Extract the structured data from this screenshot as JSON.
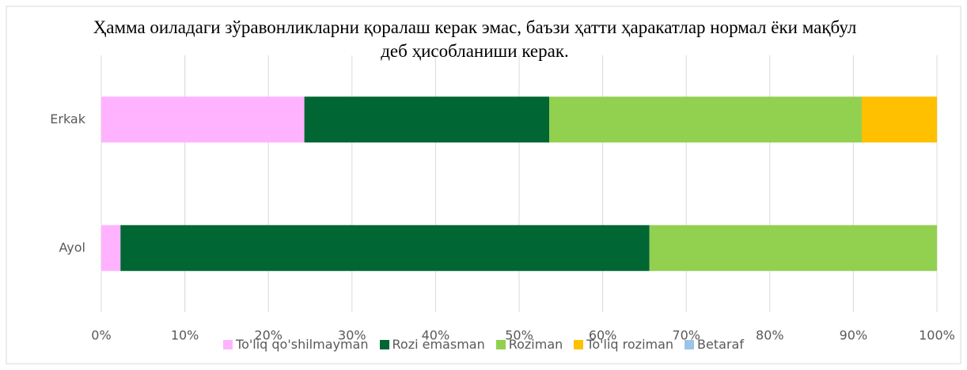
{
  "chart_data": {
    "type": "stacked-bar-horizontal",
    "title": "Ҳамма оиладаги зўравонликларни қоралаш керак эмас, баъзи ҳатти ҳаракатлар нормал ёки мақбул деб ҳисобланиши керак.",
    "categories": [
      "Erkak",
      "Ayol"
    ],
    "series": [
      {
        "name": "To'liq qo'shilmayman",
        "color": "#ffb3ff",
        "values": [
          24.3,
          2.3
        ]
      },
      {
        "name": "Rozi emasman",
        "color": "#006633",
        "values": [
          29.3,
          63.3
        ]
      },
      {
        "name": "Roziman",
        "color": "#92d050",
        "values": [
          37.4,
          34.4
        ]
      },
      {
        "name": "To'liq roziman",
        "color": "#ffc000",
        "values": [
          9.0,
          0
        ]
      },
      {
        "name": "Betaraf",
        "color": "#9dc3e6",
        "values": [
          0,
          0
        ]
      }
    ],
    "xlim": [
      0,
      100
    ],
    "xticks": [
      {
        "value": 0,
        "label": "0%"
      },
      {
        "value": 10,
        "label": "10%"
      },
      {
        "value": 20,
        "label": "20%"
      },
      {
        "value": 30,
        "label": "30%"
      },
      {
        "value": 40,
        "label": "40%"
      },
      {
        "value": 50,
        "label": "50%"
      },
      {
        "value": 60,
        "label": "60%"
      },
      {
        "value": 70,
        "label": "70%"
      },
      {
        "value": 80,
        "label": "80%"
      },
      {
        "value": 90,
        "label": "90%"
      },
      {
        "value": 100,
        "label": "100%"
      }
    ],
    "grid": true,
    "legend": "bottom"
  }
}
